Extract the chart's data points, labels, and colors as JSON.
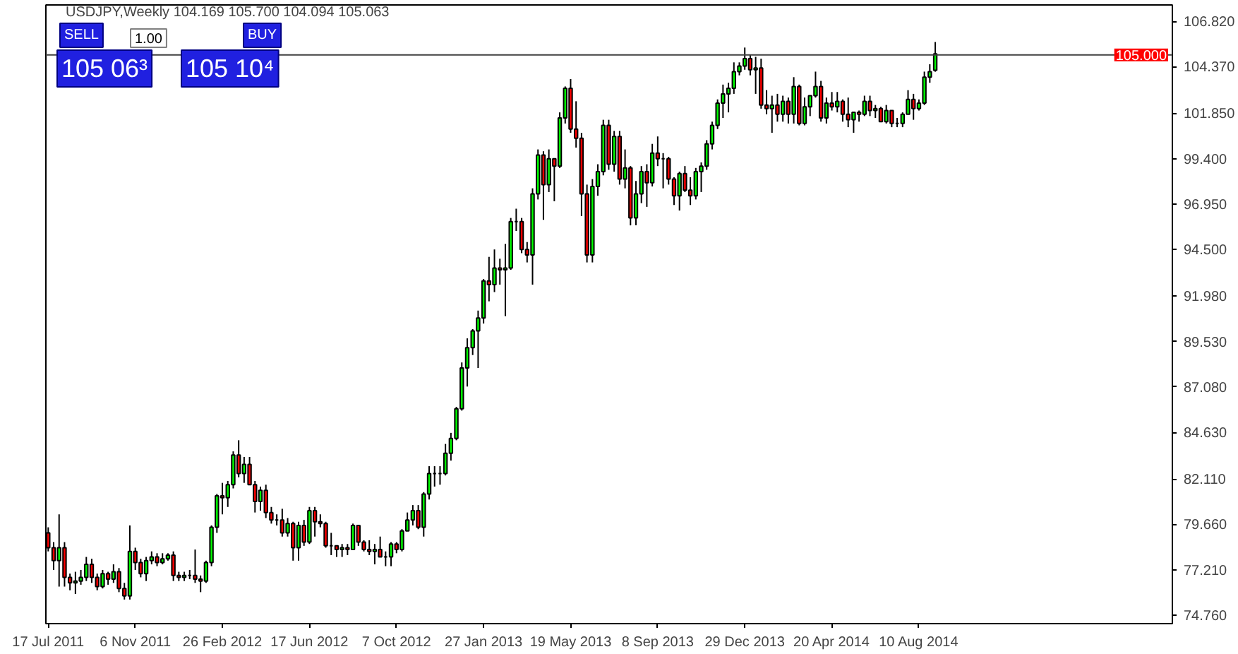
{
  "chart_data": {
    "type": "candlestick",
    "title": "USDJPY,Weekly  104.169 105.700 104.094 105.063",
    "annotations": [
      "SELL",
      "1.00",
      "BUY",
      "105 06³",
      "105 10⁴"
    ],
    "x": [
      "2011-07-17",
      "2011-07-24",
      "2011-07-31",
      "2011-08-07",
      "2011-08-14",
      "2011-08-21",
      "2011-08-28",
      "2011-09-04",
      "2011-09-11",
      "2011-09-18",
      "2011-09-25",
      "2011-10-02",
      "2011-10-09",
      "2011-10-16",
      "2011-10-23",
      "2011-10-30",
      "2011-11-06",
      "2011-11-13",
      "2011-11-20",
      "2011-11-27",
      "2011-12-04",
      "2011-12-11",
      "2011-12-18",
      "2011-12-25",
      "2012-01-01",
      "2012-01-08",
      "2012-01-15",
      "2012-01-22",
      "2012-01-29",
      "2012-02-05",
      "2012-02-12",
      "2012-02-19",
      "2012-02-26",
      "2012-03-04",
      "2012-03-11",
      "2012-03-18",
      "2012-03-25",
      "2012-04-01",
      "2012-04-08",
      "2012-04-15",
      "2012-04-22",
      "2012-04-29",
      "2012-05-06",
      "2012-05-13",
      "2012-05-20",
      "2012-05-27",
      "2012-06-03",
      "2012-06-10",
      "2012-06-17",
      "2012-06-24",
      "2012-07-01",
      "2012-07-08",
      "2012-07-15",
      "2012-07-22",
      "2012-07-29",
      "2012-08-05",
      "2012-08-12",
      "2012-08-19",
      "2012-08-26",
      "2012-09-02",
      "2012-09-09",
      "2012-09-16",
      "2012-09-23",
      "2012-09-30",
      "2012-10-07",
      "2012-10-14",
      "2012-10-21",
      "2012-10-28",
      "2012-11-04",
      "2012-11-11",
      "2012-11-18",
      "2012-11-25",
      "2012-12-02",
      "2012-12-09",
      "2012-12-16",
      "2012-12-23",
      "2012-12-30",
      "2013-01-06",
      "2013-01-13",
      "2013-01-20",
      "2013-01-27",
      "2013-02-03",
      "2013-02-10",
      "2013-02-17",
      "2013-02-24",
      "2013-03-03",
      "2013-03-10",
      "2013-03-17",
      "2013-03-24",
      "2013-03-31",
      "2013-04-07",
      "2013-04-14",
      "2013-04-21",
      "2013-04-28",
      "2013-05-05",
      "2013-05-12",
      "2013-05-19",
      "2013-05-26",
      "2013-06-02",
      "2013-06-09",
      "2013-06-16",
      "2013-06-23",
      "2013-06-30",
      "2013-07-07",
      "2013-07-14",
      "2013-07-21",
      "2013-07-28",
      "2013-08-04",
      "2013-08-11",
      "2013-08-18",
      "2013-08-25",
      "2013-09-01",
      "2013-09-08",
      "2013-09-15",
      "2013-09-22",
      "2013-09-29",
      "2013-10-06",
      "2013-10-13",
      "2013-10-20",
      "2013-10-27",
      "2013-11-03",
      "2013-11-10",
      "2013-11-17",
      "2013-11-24",
      "2013-12-01",
      "2013-12-08",
      "2013-12-15",
      "2013-12-22",
      "2013-12-29",
      "2014-01-05",
      "2014-01-12",
      "2014-01-19",
      "2014-01-26",
      "2014-02-02",
      "2014-02-09",
      "2014-02-16",
      "2014-02-23",
      "2014-03-02",
      "2014-03-09",
      "2014-03-16",
      "2014-03-23",
      "2014-03-30",
      "2014-04-06",
      "2014-04-13",
      "2014-04-20",
      "2014-04-27",
      "2014-05-04",
      "2014-05-11",
      "2014-05-18",
      "2014-05-25",
      "2014-06-01",
      "2014-06-08",
      "2014-06-15",
      "2014-06-22",
      "2014-06-29",
      "2014-07-06",
      "2014-07-13",
      "2014-07-20",
      "2014-07-27",
      "2014-08-03",
      "2014-08-10",
      "2014-08-17",
      "2014-08-24",
      "2014-08-31"
    ],
    "ohlc": [
      [
        79.2,
        79.5,
        78.2,
        78.4
      ],
      [
        78.4,
        78.7,
        77.2,
        77.7
      ],
      [
        77.7,
        80.2,
        76.3,
        78.4
      ],
      [
        78.4,
        78.7,
        76.3,
        76.8
      ],
      [
        76.8,
        77.0,
        76.1,
        76.5
      ],
      [
        76.5,
        77.1,
        75.9,
        76.6
      ],
      [
        76.6,
        77.2,
        76.4,
        76.8
      ],
      [
        76.8,
        77.9,
        76.6,
        77.5
      ],
      [
        77.5,
        77.8,
        76.5,
        76.8
      ],
      [
        76.8,
        77.0,
        76.1,
        76.3
      ],
      [
        76.3,
        77.2,
        76.2,
        77.0
      ],
      [
        77.0,
        77.1,
        76.4,
        76.7
      ],
      [
        76.7,
        77.5,
        76.5,
        77.1
      ],
      [
        77.1,
        77.3,
        76.0,
        76.2
      ],
      [
        76.2,
        76.5,
        75.6,
        75.8
      ],
      [
        75.8,
        79.6,
        75.6,
        78.2
      ],
      [
        78.2,
        78.4,
        77.2,
        77.6
      ],
      [
        77.6,
        77.8,
        76.8,
        77.0
      ],
      [
        77.0,
        77.9,
        76.6,
        77.7
      ],
      [
        77.7,
        78.2,
        77.5,
        77.9
      ],
      [
        77.9,
        78.1,
        77.4,
        77.6
      ],
      [
        77.6,
        78.1,
        77.5,
        77.8
      ],
      [
        77.8,
        78.1,
        77.7,
        78.0
      ],
      [
        78.0,
        78.2,
        76.6,
        76.9
      ],
      [
        76.9,
        77.1,
        76.6,
        76.8
      ],
      [
        76.8,
        77.1,
        76.6,
        76.9
      ],
      [
        76.9,
        77.2,
        76.7,
        76.9
      ],
      [
        76.9,
        78.3,
        76.5,
        76.7
      ],
      [
        76.7,
        76.9,
        76.0,
        76.6
      ],
      [
        76.6,
        77.7,
        76.5,
        77.6
      ],
      [
        77.6,
        79.6,
        77.4,
        79.5
      ],
      [
        79.5,
        81.3,
        79.2,
        81.2
      ],
      [
        81.2,
        81.9,
        80.2,
        81.1
      ],
      [
        81.1,
        82.0,
        80.6,
        81.8
      ],
      [
        81.8,
        83.6,
        81.6,
        83.4
      ],
      [
        83.4,
        84.2,
        82.2,
        82.4
      ],
      [
        82.4,
        83.3,
        81.9,
        82.9
      ],
      [
        82.9,
        83.3,
        81.8,
        81.8
      ],
      [
        81.8,
        82.0,
        80.3,
        80.9
      ],
      [
        80.9,
        81.7,
        80.4,
        81.5
      ],
      [
        81.5,
        81.8,
        80.0,
        80.3
      ],
      [
        80.3,
        80.6,
        79.7,
        79.9
      ],
      [
        79.9,
        80.2,
        79.6,
        79.9
      ],
      [
        79.9,
        80.5,
        79.0,
        79.2
      ],
      [
        79.2,
        80.0,
        79.0,
        79.7
      ],
      [
        79.7,
        79.8,
        77.7,
        78.4
      ],
      [
        78.4,
        79.8,
        77.7,
        79.6
      ],
      [
        79.6,
        79.9,
        78.5,
        78.7
      ],
      [
        78.7,
        80.6,
        78.6,
        80.4
      ],
      [
        80.4,
        80.6,
        79.0,
        79.8
      ],
      [
        79.8,
        80.2,
        79.5,
        79.7
      ],
      [
        79.7,
        79.8,
        78.4,
        78.5
      ],
      [
        78.5,
        79.2,
        78.0,
        78.5
      ],
      [
        78.5,
        78.5,
        77.9,
        78.3
      ],
      [
        78.3,
        78.6,
        77.9,
        78.4
      ],
      [
        78.4,
        78.6,
        78.0,
        78.3
      ],
      [
        78.3,
        79.7,
        78.3,
        79.6
      ],
      [
        79.6,
        79.6,
        78.5,
        78.7
      ],
      [
        78.7,
        78.8,
        78.2,
        78.3
      ],
      [
        78.3,
        78.8,
        78.0,
        78.2
      ],
      [
        78.2,
        78.6,
        77.5,
        78.3
      ],
      [
        78.3,
        79.0,
        77.9,
        77.9
      ],
      [
        77.9,
        78.2,
        77.4,
        77.9
      ],
      [
        77.9,
        78.7,
        77.4,
        78.6
      ],
      [
        78.6,
        78.7,
        78.1,
        78.3
      ],
      [
        78.3,
        79.4,
        78.2,
        79.3
      ],
      [
        79.3,
        80.3,
        79.3,
        79.9
      ],
      [
        79.9,
        80.7,
        79.6,
        80.4
      ],
      [
        80.4,
        80.7,
        79.4,
        79.5
      ],
      [
        79.5,
        81.4,
        79.0,
        81.3
      ],
      [
        81.3,
        82.8,
        81.0,
        82.4
      ],
      [
        82.4,
        82.8,
        81.7,
        82.4
      ],
      [
        82.4,
        82.8,
        81.8,
        82.4
      ],
      [
        82.4,
        84.0,
        82.3,
        83.5
      ],
      [
        83.5,
        84.6,
        83.1,
        84.3
      ],
      [
        84.3,
        86.0,
        84.2,
        85.9
      ],
      [
        85.9,
        88.4,
        85.8,
        88.1
      ],
      [
        88.1,
        89.7,
        87.1,
        89.2
      ],
      [
        89.2,
        90.2,
        88.8,
        90.1
      ],
      [
        90.1,
        91.2,
        88.1,
        90.8
      ],
      [
        90.8,
        92.9,
        90.5,
        92.8
      ],
      [
        92.8,
        94.1,
        91.7,
        92.6
      ],
      [
        92.6,
        94.5,
        92.2,
        93.5
      ],
      [
        93.5,
        94.0,
        92.6,
        93.4
      ],
      [
        93.4,
        94.8,
        90.9,
        93.5
      ],
      [
        93.5,
        96.2,
        93.4,
        96.0
      ],
      [
        96.0,
        96.7,
        95.5,
        96.0
      ],
      [
        96.0,
        96.2,
        94.3,
        94.5
      ],
      [
        94.5,
        94.9,
        93.8,
        94.2
      ],
      [
        94.2,
        97.8,
        92.6,
        97.5
      ],
      [
        97.5,
        99.9,
        97.2,
        99.6
      ],
      [
        99.6,
        99.8,
        96.1,
        98.0
      ],
      [
        98.0,
        99.9,
        97.6,
        99.4
      ],
      [
        99.4,
        99.4,
        97.1,
        99.0
      ],
      [
        99.0,
        101.9,
        98.9,
        101.6
      ],
      [
        101.6,
        103.3,
        101.3,
        103.2
      ],
      [
        103.2,
        103.7,
        100.8,
        101.0
      ],
      [
        101.0,
        102.5,
        100.0,
        100.5
      ],
      [
        100.5,
        100.8,
        96.3,
        97.5
      ],
      [
        97.5,
        98.0,
        93.8,
        94.2
      ],
      [
        94.2,
        98.3,
        93.8,
        97.9
      ],
      [
        97.9,
        99.1,
        97.4,
        98.7
      ],
      [
        98.7,
        101.5,
        98.5,
        101.2
      ],
      [
        101.2,
        101.5,
        98.8,
        99.1
      ],
      [
        99.1,
        100.9,
        98.7,
        100.6
      ],
      [
        100.6,
        100.9,
        98.0,
        98.3
      ],
      [
        98.3,
        99.9,
        97.8,
        98.9
      ],
      [
        98.9,
        99.0,
        95.8,
        96.2
      ],
      [
        96.2,
        98.2,
        95.8,
        97.5
      ],
      [
        97.5,
        99.0,
        97.0,
        98.7
      ],
      [
        98.7,
        99.1,
        96.8,
        98.1
      ],
      [
        98.1,
        100.2,
        97.9,
        99.7
      ],
      [
        99.7,
        100.6,
        99.0,
        99.4
      ],
      [
        99.4,
        99.7,
        97.8,
        99.4
      ],
      [
        99.4,
        99.5,
        98.0,
        98.3
      ],
      [
        98.3,
        98.4,
        96.9,
        97.4
      ],
      [
        97.4,
        98.7,
        96.6,
        98.6
      ],
      [
        98.6,
        99.0,
        97.6,
        97.7
      ],
      [
        97.7,
        98.4,
        96.9,
        97.4
      ],
      [
        97.4,
        98.9,
        97.2,
        98.7
      ],
      [
        98.7,
        99.2,
        97.6,
        99.0
      ],
      [
        99.0,
        100.4,
        98.8,
        100.2
      ],
      [
        100.2,
        101.4,
        99.9,
        101.2
      ],
      [
        101.2,
        102.6,
        101.0,
        102.4
      ],
      [
        102.4,
        103.4,
        101.6,
        102.9
      ],
      [
        102.9,
        103.5,
        101.9,
        103.2
      ],
      [
        103.2,
        104.6,
        102.9,
        104.1
      ],
      [
        104.1,
        104.6,
        103.9,
        104.4
      ],
      [
        104.4,
        105.4,
        104.2,
        104.8
      ],
      [
        104.8,
        105.0,
        103.9,
        104.2
      ],
      [
        104.2,
        104.9,
        102.9,
        104.3
      ],
      [
        104.3,
        104.8,
        102.1,
        102.3
      ],
      [
        102.3,
        103.1,
        101.8,
        102.1
      ],
      [
        102.1,
        102.8,
        100.8,
        102.3
      ],
      [
        102.3,
        102.9,
        101.4,
        101.8
      ],
      [
        101.8,
        102.8,
        101.4,
        102.5
      ],
      [
        102.5,
        102.7,
        101.3,
        101.8
      ],
      [
        101.8,
        103.8,
        101.3,
        103.3
      ],
      [
        103.3,
        103.4,
        101.2,
        101.3
      ],
      [
        101.3,
        102.7,
        101.2,
        102.2
      ],
      [
        102.2,
        102.8,
        101.7,
        102.8
      ],
      [
        102.8,
        104.1,
        102.7,
        103.3
      ],
      [
        103.3,
        103.6,
        101.4,
        101.6
      ],
      [
        101.6,
        102.7,
        101.3,
        102.4
      ],
      [
        102.4,
        103.0,
        102.0,
        102.2
      ],
      [
        102.2,
        103.0,
        101.9,
        102.5
      ],
      [
        102.5,
        102.6,
        101.4,
        101.8
      ],
      [
        101.8,
        102.7,
        101.1,
        101.5
      ],
      [
        101.5,
        101.9,
        100.8,
        101.9
      ],
      [
        101.9,
        102.0,
        101.4,
        101.8
      ],
      [
        101.8,
        102.8,
        101.7,
        102.5
      ],
      [
        102.5,
        102.8,
        101.7,
        102.0
      ],
      [
        102.0,
        102.3,
        101.6,
        102.1
      ],
      [
        102.1,
        102.2,
        101.4,
        101.4
      ],
      [
        101.4,
        102.3,
        101.3,
        102.0
      ],
      [
        102.0,
        102.0,
        101.1,
        101.3
      ],
      [
        101.3,
        101.6,
        101.1,
        101.3
      ],
      [
        101.3,
        101.9,
        101.1,
        101.8
      ],
      [
        101.8,
        103.1,
        101.8,
        102.6
      ],
      [
        102.6,
        102.9,
        101.5,
        102.1
      ],
      [
        102.1,
        102.6,
        102.0,
        102.4
      ],
      [
        102.4,
        104.1,
        102.3,
        103.8
      ],
      [
        103.8,
        104.5,
        103.5,
        104.1
      ],
      [
        104.169,
        105.7,
        104.094,
        105.063
      ]
    ],
    "xlim": [
      "2011-07-14",
      "2015-07-02"
    ],
    "xticks": [
      {
        "value": "2011-07-17",
        "label": "17 Jul 2011"
      },
      {
        "value": "2011-11-06",
        "label": "6 Nov 2011"
      },
      {
        "value": "2012-02-26",
        "label": "26 Feb 2012"
      },
      {
        "value": "2012-06-17",
        "label": "17 Jun 2012"
      },
      {
        "value": "2012-10-07",
        "label": "7 Oct 2012"
      },
      {
        "value": "2013-01-27",
        "label": "27 Jan 2013"
      },
      {
        "value": "2013-05-19",
        "label": "19 May 2013"
      },
      {
        "value": "2013-09-08",
        "label": "8 Sep 2013"
      },
      {
        "value": "2013-12-29",
        "label": "29 Dec 2013"
      },
      {
        "value": "2014-04-20",
        "label": "20 Apr 2014"
      },
      {
        "value": "2014-08-10",
        "label": "10 Aug 2014"
      }
    ],
    "ylim": [
      74.3,
      107.7
    ],
    "yticks": [
      {
        "value": 74.76,
        "label": "74.760"
      },
      {
        "value": 77.21,
        "label": "77.210"
      },
      {
        "value": 79.66,
        "label": "79.660"
      },
      {
        "value": 82.11,
        "label": "82.110"
      },
      {
        "value": 84.63,
        "label": "84.630"
      },
      {
        "value": 87.08,
        "label": "87.080"
      },
      {
        "value": 89.53,
        "label": "89.530"
      },
      {
        "value": 91.98,
        "label": "91.980"
      },
      {
        "value": 94.5,
        "label": "94.500"
      },
      {
        "value": 96.95,
        "label": "96.950"
      },
      {
        "value": 99.4,
        "label": "99.400"
      },
      {
        "value": 101.85,
        "label": "101.850"
      },
      {
        "value": 104.37,
        "label": "104.370"
      },
      {
        "value": 106.82,
        "label": "106.820"
      }
    ],
    "ref_lines": [
      {
        "axis": "y",
        "value": 105.0,
        "label": "105.000",
        "color": "#404040"
      }
    ],
    "grid": false
  }
}
